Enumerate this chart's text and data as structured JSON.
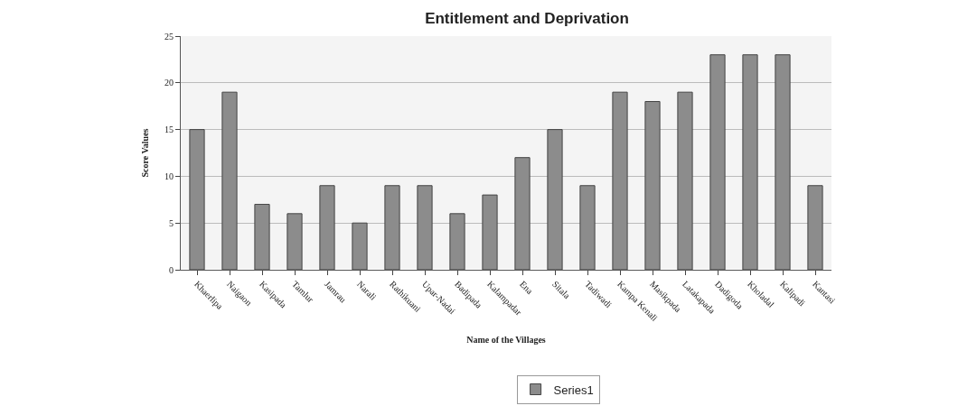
{
  "chart_data": {
    "type": "bar",
    "title": "Entitlement and Deprivation",
    "xlabel": "Name of the Villages",
    "ylabel": "Score Values",
    "categories": [
      "Khaerlipa",
      "Naigaon",
      "Kasipada",
      "Tamlur",
      "Jamrau",
      "Narali",
      "Rathikuani",
      "Upar-Nadai",
      "Badipada",
      "Kalampadar",
      "Ena",
      "Sitala",
      "Tadiwadi",
      "Kampa Kenali",
      "Masikpada",
      "Latakapada",
      "Dadigoda",
      "Kholadal",
      "Kalipadi",
      "Kantasi"
    ],
    "series": [
      {
        "name": "Series1",
        "color": "#8c8c8c",
        "values": [
          15,
          19,
          7,
          6,
          9,
          5,
          9,
          9,
          6,
          8,
          12,
          15,
          9,
          19,
          18,
          19,
          23,
          23,
          23,
          9
        ]
      }
    ],
    "ylim": [
      0,
      25
    ],
    "yticks": [
      0,
      5,
      10,
      15,
      20,
      25
    ],
    "grid": "y",
    "legend": "bottom"
  }
}
